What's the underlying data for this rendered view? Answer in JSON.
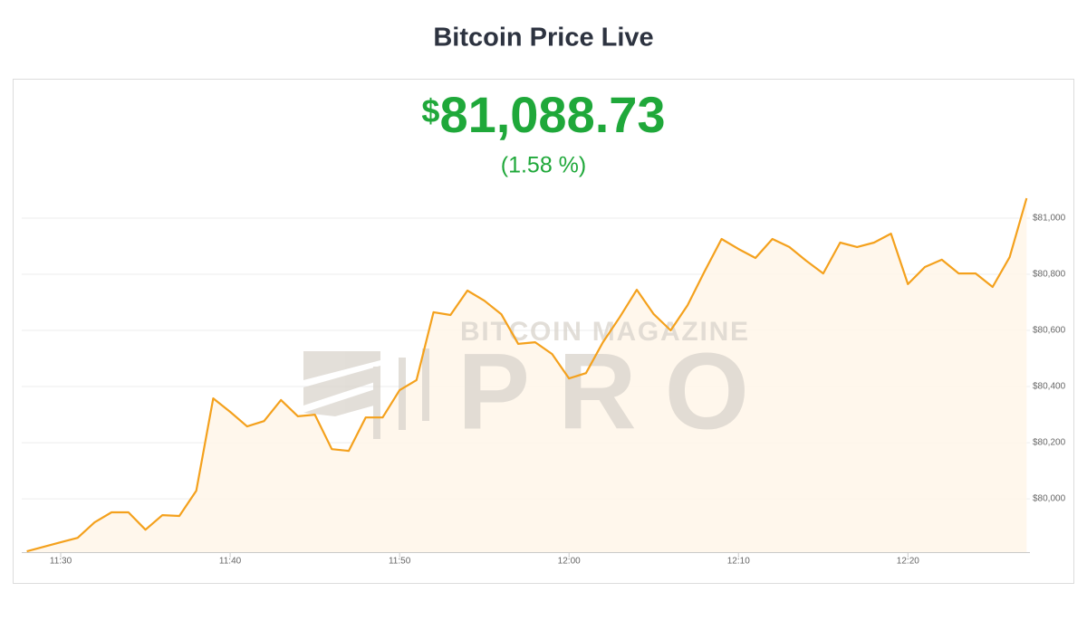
{
  "chart_data": {
    "type": "area",
    "title": "Bitcoin Price Live",
    "price_symbol": "$",
    "price_value": "81,088.73",
    "change": "(1.58 %)",
    "watermark": [
      "BITCOIN MAGAZINE",
      "PRO"
    ],
    "x": [
      688,
      689,
      690,
      691,
      692,
      693,
      694,
      695,
      696,
      697,
      698,
      699,
      700,
      701,
      702,
      703,
      704,
      705,
      706,
      707,
      708,
      709,
      710,
      711,
      712,
      713,
      714,
      715,
      716,
      717,
      718,
      719,
      720,
      721,
      722,
      723,
      724,
      725,
      726,
      727,
      728,
      729,
      730,
      731,
      732,
      733,
      734,
      735,
      736,
      737,
      738,
      739,
      740,
      741,
      742,
      743,
      744,
      745,
      746,
      747
    ],
    "values": [
      79813,
      79829,
      79845,
      79861,
      79916,
      79952,
      79952,
      79890,
      79942,
      79939,
      80029,
      80358,
      80310,
      80258,
      80277,
      80352,
      80294,
      80300,
      80177,
      80171,
      80290,
      80290,
      80387,
      80423,
      80665,
      80655,
      80742,
      80706,
      80658,
      80552,
      80558,
      80516,
      80429,
      80448,
      80558,
      80648,
      80745,
      80658,
      80600,
      80690,
      80810,
      80926,
      80890,
      80858,
      80926,
      80897,
      80848,
      80803,
      80913,
      80897,
      80913,
      80945,
      80765,
      80826,
      80852,
      80803,
      80803,
      80755,
      80861,
      81071
    ],
    "color": "#f4a11d",
    "fill": "#fff6e9",
    "xlim": [
      687.7,
      747.2
    ],
    "xticks": [
      {
        "value": 690,
        "label": "11:30"
      },
      {
        "value": 700,
        "label": "11:40"
      },
      {
        "value": 710,
        "label": "11:50"
      },
      {
        "value": 720,
        "label": "12:00"
      },
      {
        "value": 730,
        "label": "12:10"
      },
      {
        "value": 740,
        "label": "12:20"
      }
    ],
    "ylim": [
      79810,
      81100
    ],
    "yticks": [
      {
        "value": 80000,
        "label": "$80,000"
      },
      {
        "value": 80200,
        "label": "$80,200"
      },
      {
        "value": 80400,
        "label": "$80,400"
      },
      {
        "value": 80600,
        "label": "$80,600"
      },
      {
        "value": 80800,
        "label": "$80,800"
      },
      {
        "value": 81000,
        "label": "$81,000"
      }
    ],
    "grid": true
  }
}
